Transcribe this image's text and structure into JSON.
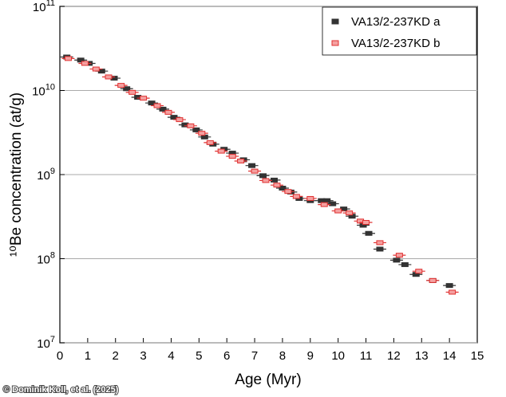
{
  "chart_data": {
    "type": "scatter",
    "x_label": "Age (Myr)",
    "y_label": "¹⁰Be concentration (at/g)",
    "credit": "© Dominik Koll, et al. (2025)",
    "log_y": true,
    "grid": true,
    "legend": "upper right",
    "xlim": [
      0,
      15
    ],
    "xticks": [
      0,
      1,
      2,
      3,
      4,
      5,
      6,
      7,
      8,
      9,
      10,
      11,
      12,
      13,
      14,
      15
    ],
    "ylim": [
      10000000,
      100000000000
    ],
    "yticks": [
      {
        "value": 10000000,
        "label": "10^7"
      },
      {
        "value": 100000000,
        "label": "10^8"
      },
      {
        "value": 1000000000,
        "label": "10^9"
      },
      {
        "value": 10000000000,
        "label": "10^10"
      },
      {
        "value": 100000000000,
        "label": "10^11"
      }
    ],
    "series": [
      {
        "name": "VA13/2-237KD a",
        "color": "#333333",
        "x": [
          0.25,
          0.75,
          1.05,
          1.5,
          1.95,
          2.4,
          2.8,
          3.3,
          3.7,
          4.1,
          4.5,
          4.9,
          5.2,
          5.5,
          5.9,
          6.2,
          6.6,
          6.9,
          7.3,
          7.7,
          8.0,
          8.3,
          8.6,
          9.0,
          9.4,
          9.6,
          9.8,
          10.2,
          10.5,
          10.9,
          11.1,
          11.5,
          12.1,
          12.4,
          12.8,
          13.4,
          14.0
        ],
        "values": [
          25000000000,
          23000000000,
          21000000000,
          17000000000,
          14000000000,
          10500000000,
          8300000000,
          7100000000,
          6000000000,
          4800000000,
          3900000000,
          3400000000,
          2800000000,
          2300000000,
          2000000000,
          1800000000,
          1500000000,
          1280000000,
          970000000,
          860000000,
          690000000,
          620000000,
          520000000,
          490000000,
          490000000,
          490000000,
          450000000,
          390000000,
          320000000,
          250000000,
          200000000,
          130000000,
          96000000,
          85000000,
          65000000,
          55000000,
          48000000
        ]
      },
      {
        "name": "VA13/2-237KD b",
        "color": "#e03030",
        "x": [
          0.3,
          0.9,
          1.3,
          1.75,
          2.2,
          2.6,
          3.0,
          3.5,
          3.9,
          4.3,
          4.7,
          5.1,
          5.4,
          5.8,
          6.2,
          6.5,
          7.0,
          7.4,
          7.8,
          8.2,
          8.5,
          9.0,
          9.5,
          10.0,
          10.4,
          10.8,
          11.0,
          11.5,
          12.2,
          12.9,
          13.4,
          14.1
        ],
        "values": [
          24000000000,
          21000000000,
          18000000000,
          14500000000,
          11500000000,
          9500000000,
          8100000000,
          6600000000,
          5500000000,
          4500000000,
          3800000000,
          3100000000,
          2400000000,
          1900000000,
          1650000000,
          1450000000,
          1100000000,
          850000000,
          750000000,
          630000000,
          550000000,
          520000000,
          440000000,
          370000000,
          350000000,
          280000000,
          270000000,
          155000000,
          110000000,
          71000000,
          55000000,
          40000000
        ]
      }
    ]
  }
}
